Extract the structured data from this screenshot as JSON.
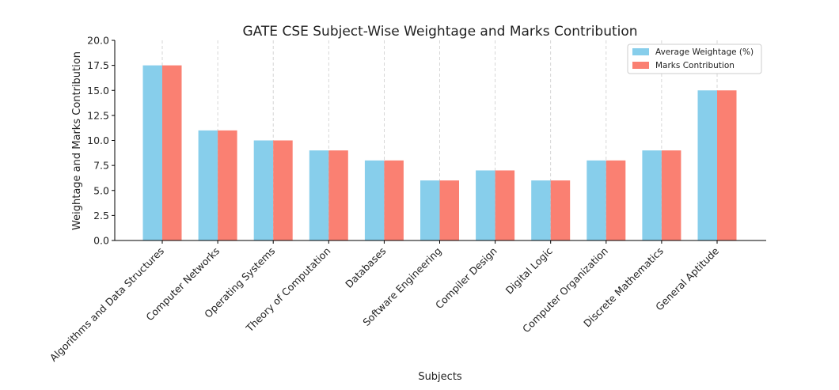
{
  "chart_data": {
    "type": "bar",
    "title": "GATE CSE Subject-Wise Weightage and Marks Contribution",
    "xlabel": "Subjects",
    "ylabel": "Weightage and Marks Contribution",
    "ylim": [
      0,
      20
    ],
    "yticks": [
      "0.0",
      "2.5",
      "5.0",
      "7.5",
      "10.0",
      "12.5",
      "15.0",
      "17.5",
      "20.0"
    ],
    "grid": "x-dashed",
    "legend_position": "top-right",
    "categories": [
      "Algorithms and Data Structures",
      "Computer Networks",
      "Operating Systems",
      "Theory of Computation",
      "Databases",
      "Software Engineering",
      "Compiler Design",
      "Digital Logic",
      "Computer Organization",
      "Discrete Mathematics",
      "General Aptitude"
    ],
    "series": [
      {
        "name": "Average Weightage (%)",
        "color": "#87ceeb",
        "values": [
          17.5,
          11,
          10,
          9,
          8,
          6,
          7,
          6,
          8,
          9,
          15
        ]
      },
      {
        "name": "Marks Contribution",
        "color": "#fa8072",
        "values": [
          17.5,
          11,
          10,
          9,
          8,
          6,
          7,
          6,
          8,
          9,
          15
        ]
      }
    ]
  }
}
